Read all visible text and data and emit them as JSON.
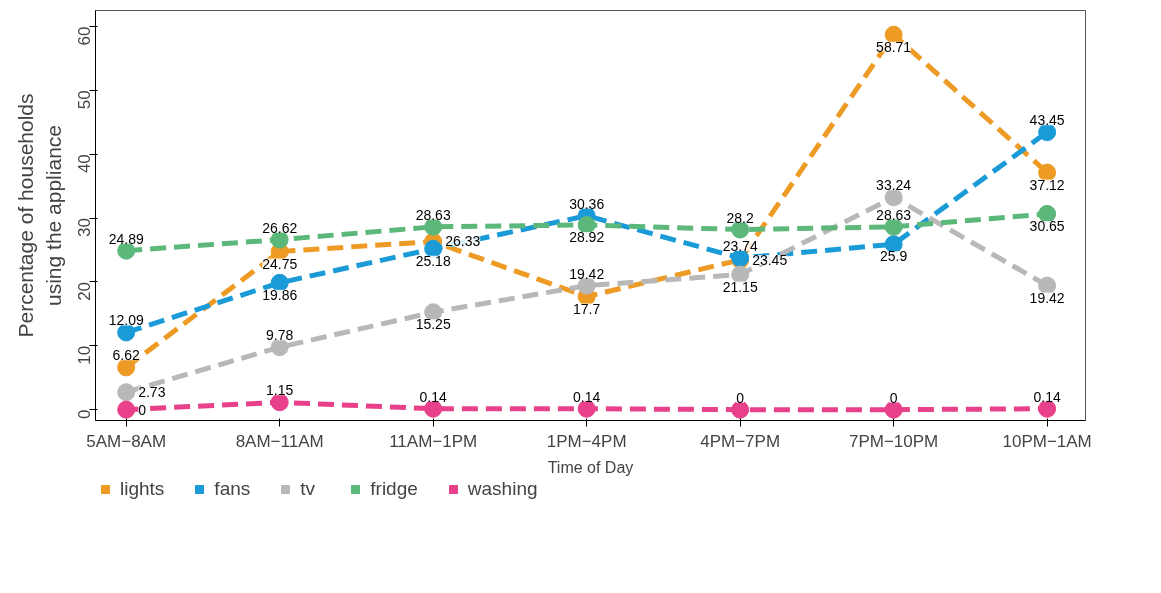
{
  "chart_data": {
    "type": "line",
    "xlabel": "Time of Day",
    "ylabel": "Percentage of households\nusing the appliance",
    "categories": [
      "5AM−8AM",
      "8AM−11AM",
      "11AM−1PM",
      "1PM−4PM",
      "4PM−7PM",
      "7PM−10PM",
      "10PM−1AM"
    ],
    "series": [
      {
        "name": "lights",
        "color": "#ee9b25",
        "values": [
          6.62,
          24.75,
          26.33,
          17.7,
          23.45,
          58.71,
          37.12
        ]
      },
      {
        "name": "fans",
        "color": "#1a9bd7",
        "values": [
          12.09,
          19.86,
          25.18,
          30.36,
          23.74,
          25.9,
          43.45
        ]
      },
      {
        "name": "tv",
        "color": "#b8b8b8",
        "values": [
          2.73,
          9.78,
          15.25,
          19.42,
          21.15,
          33.24,
          19.42
        ]
      },
      {
        "name": "fridge",
        "color": "#5cb87a",
        "values": [
          24.89,
          26.62,
          28.63,
          28.92,
          28.2,
          28.63,
          30.65
        ]
      },
      {
        "name": "washing",
        "color": "#e8408a",
        "values": [
          0,
          1.15,
          0.14,
          0.14,
          0,
          0,
          0.14
        ]
      }
    ],
    "ylim": [
      -1.7,
      62.5
    ],
    "yticks": [
      0,
      10,
      20,
      30,
      40,
      50,
      60
    ],
    "data_labels": true,
    "marker": "circle",
    "line_style": "dashed",
    "grid": false,
    "legend": "bottom"
  }
}
